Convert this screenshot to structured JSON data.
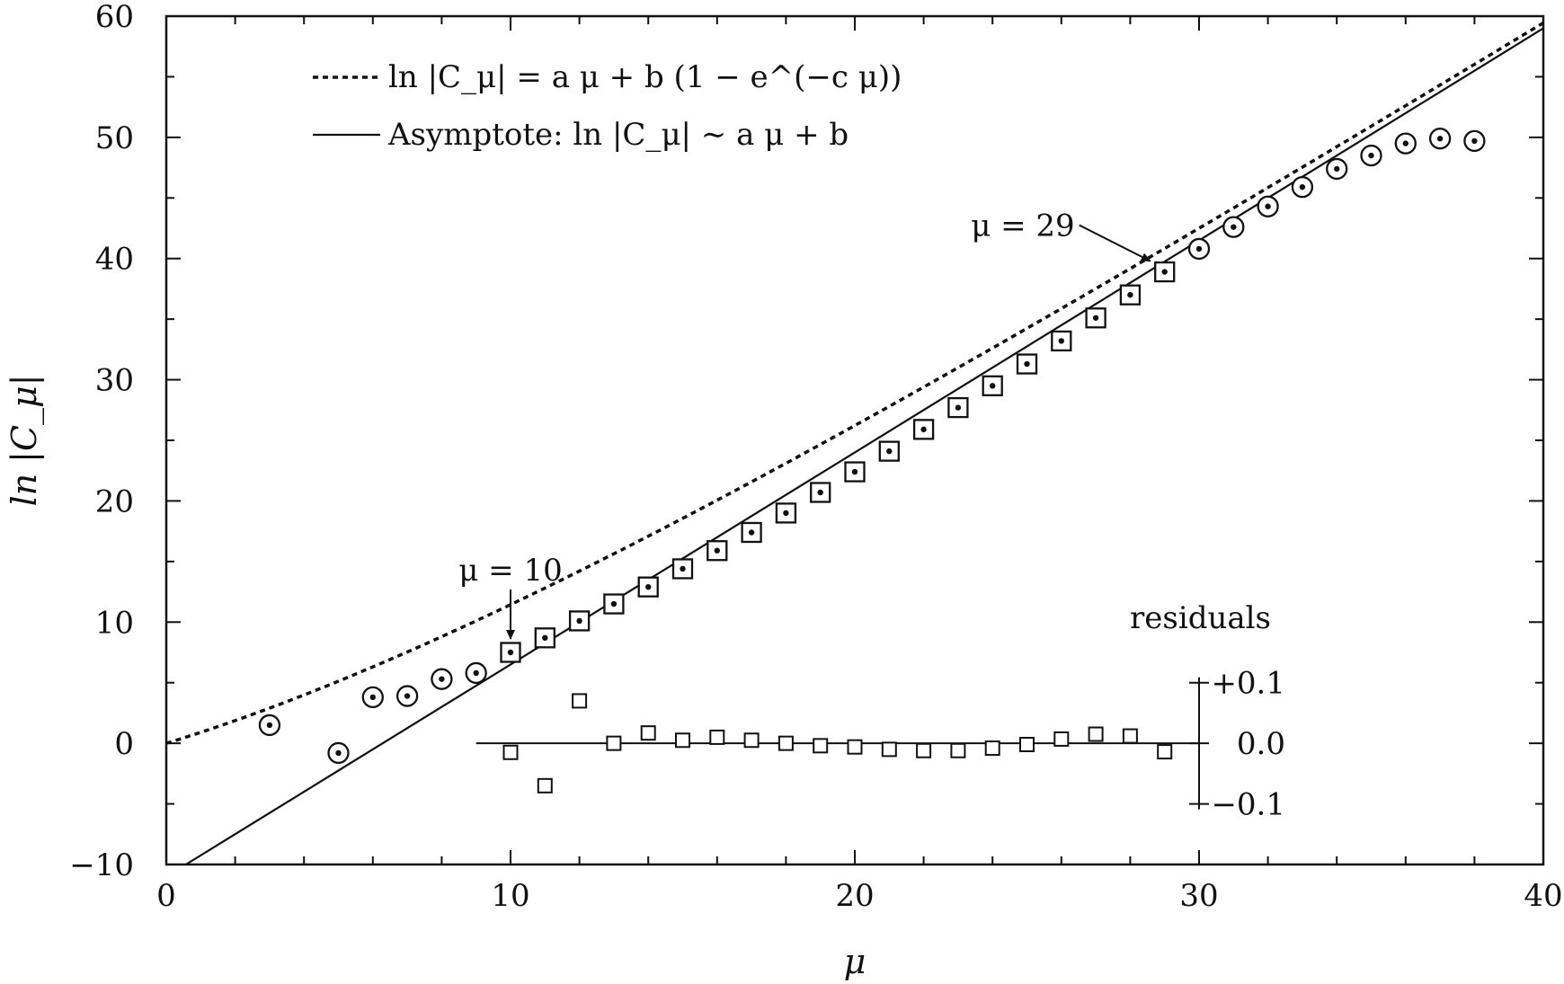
{
  "chart_data": {
    "type": "scatter",
    "xlabel": "μ",
    "ylabel": "ln |C_μ|",
    "xlim": [
      0,
      40
    ],
    "ylim": [
      -10,
      60
    ],
    "x_ticks": [
      0,
      10,
      20,
      30,
      40
    ],
    "y_ticks": [
      -10,
      0,
      10,
      20,
      30,
      40,
      50,
      60
    ],
    "x_tick_labels": [
      "0",
      "10",
      "20",
      "30",
      "40"
    ],
    "y_tick_labels": [
      "−10",
      "0",
      "10",
      "20",
      "30",
      "40",
      "50",
      "60"
    ],
    "grid": false,
    "legend_position": "top-left",
    "legend": [
      {
        "style": "dotted",
        "label": "ln |C_μ| = a μ + b (1 − e^(−c μ))"
      },
      {
        "style": "solid",
        "label": "Asymptote: ln |C_μ| ∼ a μ + b"
      }
    ],
    "fit": {
      "a": 1.75,
      "b": -11.0,
      "c": 0.08
    },
    "series": [
      {
        "marker": "circle",
        "x": [
          3,
          5,
          6,
          7,
          8,
          9,
          30,
          31,
          32,
          33,
          34,
          35,
          36,
          37,
          38
        ],
        "y": [
          1.5,
          -0.8,
          3.8,
          3.9,
          5.3,
          5.8,
          40.8,
          42.6,
          44.3,
          45.9,
          47.4,
          48.5,
          49.5,
          49.9,
          49.7
        ]
      },
      {
        "marker": "square",
        "x": [
          10,
          11,
          12,
          13,
          14,
          15,
          16,
          17,
          18,
          19,
          20,
          21,
          22,
          23,
          24,
          25,
          26,
          27,
          28,
          29
        ],
        "y": [
          7.5,
          8.7,
          10.1,
          11.5,
          12.9,
          14.4,
          15.9,
          17.4,
          19.0,
          20.7,
          22.4,
          24.1,
          25.9,
          27.7,
          29.5,
          31.3,
          33.2,
          35.1,
          37.0,
          38.9
        ]
      }
    ],
    "residuals": {
      "label": "residuals",
      "x": [
        10,
        11,
        12,
        13,
        14,
        15,
        16,
        17,
        18,
        19,
        20,
        21,
        22,
        23,
        24,
        25,
        26,
        27,
        28,
        29
      ],
      "y": [
        -0.015,
        -0.07,
        0.07,
        0.0,
        0.017,
        0.005,
        0.01,
        0.005,
        0.0,
        -0.004,
        -0.006,
        -0.01,
        -0.012,
        -0.012,
        -0.008,
        -0.002,
        0.007,
        0.015,
        0.012,
        -0.014
      ],
      "ylim": [
        -0.1,
        0.1
      ],
      "tick_labels": [
        "+0.1",
        "0.0",
        "−0.1"
      ],
      "tick_values": [
        0.1,
        0.0,
        -0.1
      ]
    },
    "annotations": [
      {
        "text": "μ = 10",
        "x": 10,
        "y": 7.5
      },
      {
        "text": "μ = 29",
        "x": 29,
        "y": 38.9
      }
    ]
  }
}
